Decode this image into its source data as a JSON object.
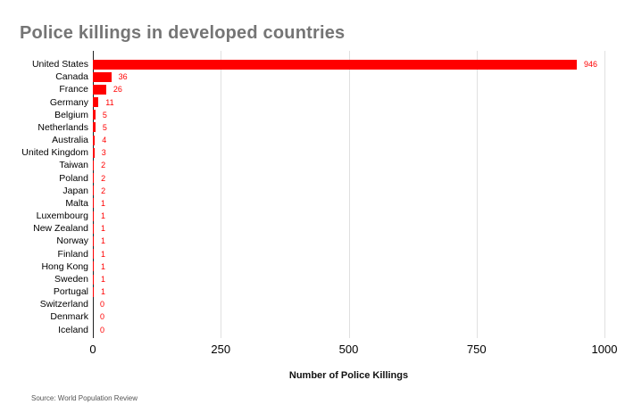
{
  "title": "Police killings in developed countries",
  "source_note": "Source: World Population Review",
  "colors": {
    "bar": "#ff0000",
    "value_label": "#ff0000",
    "title": "#757575",
    "gridline": "#e0e0e0",
    "axis_line": "#212121"
  },
  "chart_data": {
    "type": "bar",
    "orientation": "horizontal",
    "title": "Police killings in developed countries",
    "categories": [
      "United States",
      "Canada",
      "France",
      "Germany",
      "Belgium",
      "Netherlands",
      "Australia",
      "United Kingdom",
      "Taiwan",
      "Poland",
      "Japan",
      "Malta",
      "Luxembourg",
      "New Zealand",
      "Norway",
      "Finland",
      "Hong Kong",
      "Sweden",
      "Portugal",
      "Switzerland",
      "Denmark",
      "Iceland"
    ],
    "values": [
      946,
      36,
      26,
      11,
      5,
      5,
      4,
      3,
      2,
      2,
      2,
      1,
      1,
      1,
      1,
      1,
      1,
      1,
      1,
      0,
      0,
      0
    ],
    "xlabel": "Number of Police Killings",
    "ylabel": "",
    "xlim": [
      0,
      1000
    ],
    "xticks": [
      0,
      250,
      500,
      750,
      1000
    ],
    "grid": true,
    "legend": false,
    "value_labels_shown": true,
    "source": "Source: World Population Review"
  }
}
